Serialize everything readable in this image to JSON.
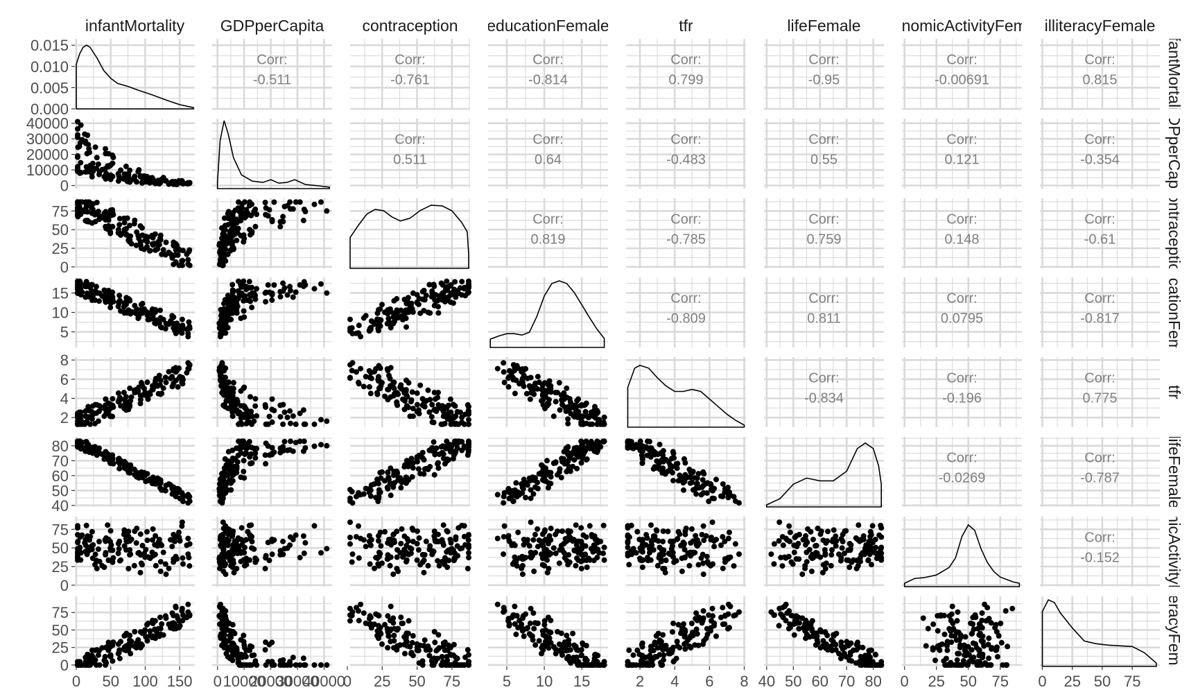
{
  "chart_data": {
    "type": "scatter",
    "title": "",
    "variables": [
      "infantMortality",
      "GDPperCapita",
      "contraception",
      "educationFemale",
      "tfr",
      "lifeFemale",
      "economicActivityFemale",
      "illiteracyFemale"
    ],
    "strip_labels_top": [
      "infantMortality",
      "GDPperCapita",
      "contraception",
      "educationFemale",
      "tfr",
      "lifeFemale",
      "economicActivityFemale",
      "illiteracyFemale"
    ],
    "strip_labels_right": [
      "infantMortality",
      "GDPperCapita",
      "contraception",
      "educationFemale",
      "tfr",
      "lifeFemale",
      "economicActivityFemale",
      "illiteracyFemale"
    ],
    "corr_prefix": "Corr:",
    "correlations": [
      [
        "",
        "-0.511",
        "-0.761",
        "-0.814",
        "0.799",
        "-0.95",
        "-0.00691",
        "0.815"
      ],
      [
        "",
        "",
        "0.511",
        "0.64",
        "-0.483",
        "0.55",
        "0.121",
        "-0.354"
      ],
      [
        "",
        "",
        "",
        "0.819",
        "-0.785",
        "0.759",
        "0.148",
        "-0.61"
      ],
      [
        "",
        "",
        "",
        "",
        "-0.809",
        "0.811",
        "0.0795",
        "-0.817"
      ],
      [
        "",
        "",
        "",
        "",
        "",
        "-0.834",
        "-0.196",
        "0.775"
      ],
      [
        "",
        "",
        "",
        "",
        "",
        "",
        "-0.0269",
        "-0.787"
      ],
      [
        "",
        "",
        "",
        "",
        "",
        "",
        "",
        "-0.152"
      ],
      [
        "",
        "",
        "",
        "",
        "",
        "",
        "",
        ""
      ]
    ],
    "x_ranges": [
      [
        -2,
        172
      ],
      [
        -2000,
        43000
      ],
      [
        2,
        88
      ],
      [
        2.5,
        18.5
      ],
      [
        1.2,
        8.1
      ],
      [
        39,
        84
      ],
      [
        -2,
        92
      ],
      [
        -2,
        98
      ]
    ],
    "x_ticks": [
      [
        0,
        50,
        100,
        150
      ],
      [
        0,
        10000,
        20000,
        30000,
        40000
      ],
      [
        0,
        25,
        50,
        75
      ],
      [
        5,
        10,
        15
      ],
      [
        2,
        4,
        6,
        8
      ],
      [
        40,
        50,
        60,
        70,
        80
      ],
      [
        0,
        25,
        50,
        75
      ],
      [
        0,
        25,
        50,
        75
      ]
    ],
    "x_tick_labels": [
      [
        "0",
        "50",
        "100",
        "150"
      ],
      [
        "0",
        "10000",
        "20000",
        "30000",
        "40000"
      ],
      [
        "0",
        "25",
        "50",
        "75"
      ],
      [
        "5",
        "10",
        "15"
      ],
      [
        "2",
        "4",
        "6",
        "8"
      ],
      [
        "40",
        "50",
        "60",
        "70",
        "80"
      ],
      [
        "0",
        "25",
        "50",
        "75"
      ],
      [
        "0",
        "25",
        "50",
        "75"
      ]
    ],
    "y_ranges": [
      [
        0,
        0.0165
      ],
      [
        -2000,
        43000
      ],
      [
        -2,
        92
      ],
      [
        1,
        19
      ],
      [
        1,
        8.3
      ],
      [
        39,
        86
      ],
      [
        -2,
        92
      ],
      [
        -2,
        98
      ]
    ],
    "y_ticks": [
      [
        0.0,
        0.005,
        0.01,
        0.015
      ],
      [
        0,
        10000,
        20000,
        30000,
        40000
      ],
      [
        0,
        25,
        50,
        75
      ],
      [
        5,
        10,
        15
      ],
      [
        2,
        4,
        6,
        8
      ],
      [
        40,
        50,
        60,
        70,
        80
      ],
      [
        0,
        25,
        50,
        75
      ],
      [
        0,
        25,
        50,
        75
      ]
    ],
    "y_tick_labels": [
      [
        "0.000",
        "0.005",
        "0.010",
        "0.015"
      ],
      [
        "0",
        "10000",
        "20000",
        "30000",
        "40000"
      ],
      [
        "0",
        "25",
        "50",
        "75"
      ],
      [
        "5",
        "10",
        "15"
      ],
      [
        "2",
        "4",
        "6",
        "8"
      ],
      [
        "40",
        "50",
        "60",
        "70",
        "80"
      ],
      [
        "0",
        "25",
        "50",
        "75"
      ],
      [
        "0",
        "25",
        "50",
        "75"
      ]
    ],
    "diagonal_densities": [
      [
        [
          0,
          0.0105
        ],
        [
          5,
          0.013
        ],
        [
          10,
          0.0145
        ],
        [
          15,
          0.015
        ],
        [
          20,
          0.0145
        ],
        [
          30,
          0.012
        ],
        [
          40,
          0.009
        ],
        [
          50,
          0.0072
        ],
        [
          60,
          0.006
        ],
        [
          75,
          0.0053
        ],
        [
          90,
          0.0044
        ],
        [
          110,
          0.0033
        ],
        [
          130,
          0.0021
        ],
        [
          150,
          0.001
        ],
        [
          170,
          0.0003
        ]
      ],
      [
        [
          0,
          0.1
        ],
        [
          1000,
          0.7
        ],
        [
          2500,
          0.99
        ],
        [
          4000,
          0.8
        ],
        [
          6000,
          0.45
        ],
        [
          9000,
          0.2
        ],
        [
          13000,
          0.11
        ],
        [
          17000,
          0.09
        ],
        [
          20000,
          0.13
        ],
        [
          23000,
          0.08
        ],
        [
          26000,
          0.09
        ],
        [
          29000,
          0.13
        ],
        [
          33000,
          0.06
        ],
        [
          38000,
          0.04
        ],
        [
          42000,
          0.02
        ]
      ],
      [
        [
          2,
          0.45
        ],
        [
          8,
          0.63
        ],
        [
          14,
          0.79
        ],
        [
          20,
          0.86
        ],
        [
          26,
          0.84
        ],
        [
          32,
          0.75
        ],
        [
          38,
          0.69
        ],
        [
          45,
          0.73
        ],
        [
          52,
          0.84
        ],
        [
          60,
          0.92
        ],
        [
          68,
          0.91
        ],
        [
          75,
          0.84
        ],
        [
          82,
          0.67
        ],
        [
          86,
          0.53
        ],
        [
          87,
          0.2
        ]
      ],
      [
        [
          2.8,
          0.12
        ],
        [
          4,
          0.17
        ],
        [
          5,
          0.2
        ],
        [
          6,
          0.2
        ],
        [
          7,
          0.18
        ],
        [
          8,
          0.22
        ],
        [
          9,
          0.45
        ],
        [
          10,
          0.75
        ],
        [
          11,
          0.93
        ],
        [
          12,
          0.97
        ],
        [
          13,
          0.93
        ],
        [
          14,
          0.8
        ],
        [
          15,
          0.62
        ],
        [
          16,
          0.44
        ],
        [
          17,
          0.27
        ],
        [
          18,
          0.13
        ]
      ],
      [
        [
          1.3,
          0.58
        ],
        [
          1.7,
          0.86
        ],
        [
          2,
          0.9
        ],
        [
          2.5,
          0.86
        ],
        [
          3,
          0.72
        ],
        [
          3.5,
          0.6
        ],
        [
          4,
          0.52
        ],
        [
          4.5,
          0.52
        ],
        [
          5,
          0.55
        ],
        [
          5.5,
          0.52
        ],
        [
          6,
          0.41
        ],
        [
          6.5,
          0.3
        ],
        [
          7,
          0.19
        ],
        [
          7.5,
          0.1
        ],
        [
          8,
          0.03
        ]
      ],
      [
        [
          40,
          0.03
        ],
        [
          45,
          0.12
        ],
        [
          50,
          0.33
        ],
        [
          55,
          0.42
        ],
        [
          60,
          0.38
        ],
        [
          65,
          0.38
        ],
        [
          70,
          0.52
        ],
        [
          74,
          0.85
        ],
        [
          77,
          0.93
        ],
        [
          80,
          0.85
        ],
        [
          82,
          0.6
        ],
        [
          83,
          0.33
        ]
      ],
      [
        [
          0,
          0.05
        ],
        [
          8,
          0.12
        ],
        [
          15,
          0.13
        ],
        [
          25,
          0.17
        ],
        [
          35,
          0.28
        ],
        [
          40,
          0.42
        ],
        [
          45,
          0.73
        ],
        [
          50,
          0.9
        ],
        [
          55,
          0.82
        ],
        [
          60,
          0.55
        ],
        [
          65,
          0.35
        ],
        [
          70,
          0.22
        ],
        [
          75,
          0.14
        ],
        [
          85,
          0.07
        ],
        [
          90,
          0.05
        ]
      ],
      [
        [
          0,
          0.8
        ],
        [
          5,
          0.97
        ],
        [
          10,
          0.93
        ],
        [
          15,
          0.78
        ],
        [
          25,
          0.56
        ],
        [
          35,
          0.37
        ],
        [
          45,
          0.33
        ],
        [
          55,
          0.31
        ],
        [
          65,
          0.3
        ],
        [
          75,
          0.29
        ],
        [
          85,
          0.2
        ],
        [
          95,
          0.05
        ]
      ]
    ],
    "grid": true,
    "legend": "none"
  }
}
